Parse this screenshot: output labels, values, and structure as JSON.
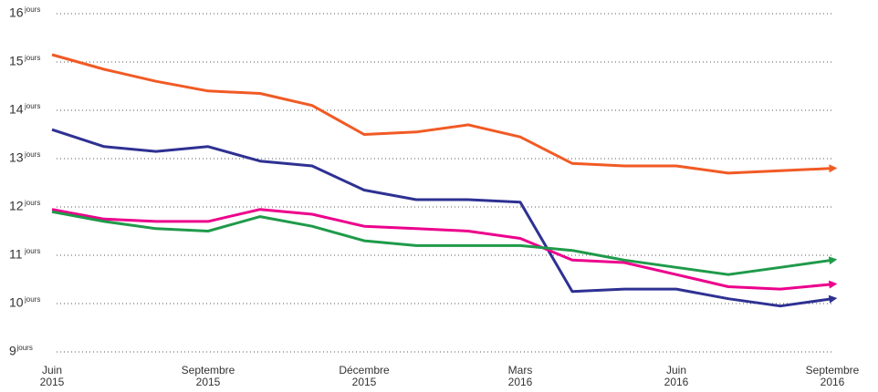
{
  "chart_data": {
    "type": "line",
    "categories": [
      "Juin\n2015",
      null,
      null,
      "Septembre\n2015",
      null,
      null,
      "Décembre\n2015",
      null,
      null,
      "Mars\n2016",
      null,
      null,
      "Juin\n2016",
      null,
      null,
      "Septembre\n2016"
    ],
    "y_unit": "jours",
    "ylim": [
      9,
      16
    ],
    "yticks": [
      9,
      10,
      11,
      12,
      13,
      14,
      15,
      16
    ],
    "grid": true,
    "series": [
      {
        "color": "#f15a24",
        "values": [
          15.15,
          14.85,
          14.6,
          14.4,
          14.35,
          14.1,
          13.5,
          13.55,
          13.7,
          13.45,
          12.9,
          12.85,
          12.85,
          12.7,
          12.75,
          12.8
        ]
      },
      {
        "color": "#2e3192",
        "values": [
          13.6,
          13.25,
          13.15,
          13.25,
          12.95,
          12.85,
          12.35,
          12.15,
          12.15,
          12.1,
          10.25,
          10.3,
          10.3,
          10.1,
          9.95,
          10.1
        ]
      },
      {
        "color": "#ec008c",
        "values": [
          11.95,
          11.75,
          11.7,
          11.7,
          11.95,
          11.85,
          11.6,
          11.55,
          11.5,
          11.35,
          10.9,
          10.85,
          10.6,
          10.35,
          10.3,
          10.4
        ]
      },
      {
        "color": "#1f9a4a",
        "values": [
          11.9,
          11.7,
          11.55,
          11.5,
          11.8,
          11.6,
          11.3,
          11.2,
          11.2,
          11.2,
          11.1,
          10.9,
          10.75,
          10.6,
          10.75,
          10.9
        ]
      }
    ]
  }
}
